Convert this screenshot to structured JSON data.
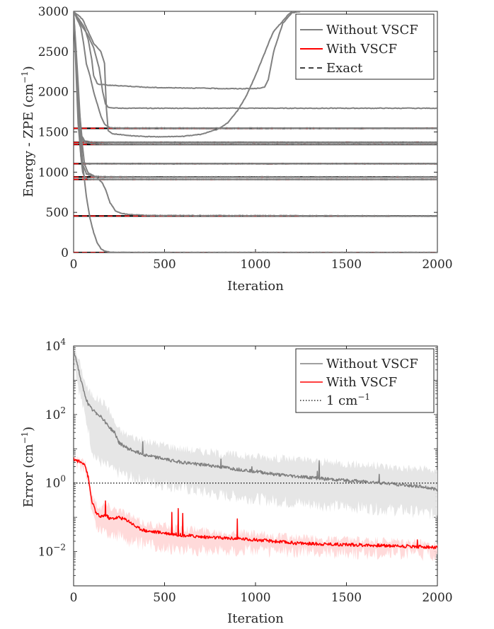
{
  "chart_data": [
    {
      "type": "line",
      "panel": "top",
      "xlabel": "Iteration",
      "ylabel": "Energy - ZPE (cm",
      "ylabel_sup": "−1",
      "ylabel_close": ")",
      "xlim": [
        0,
        2000
      ],
      "ylim": [
        0,
        3000
      ],
      "xticks": [
        0,
        500,
        1000,
        1500,
        2000
      ],
      "yticks": [
        0,
        500,
        1000,
        1500,
        2000,
        2500,
        3000
      ],
      "legend": {
        "position": "top-right",
        "entries": [
          {
            "label": "Without VSCF",
            "color": "#808080",
            "style": "solid"
          },
          {
            "label": "With VSCF",
            "color": "#ff0000",
            "style": "solid"
          },
          {
            "label": "Exact",
            "color": "#000000",
            "style": "dashed"
          }
        ]
      },
      "exact_levels": [
        0,
        455,
        910,
        940,
        1105,
        1345,
        1370,
        1545
      ],
      "series": [
        {
          "name": "Without VSCF state 1",
          "x": [
            0,
            15,
            30,
            50,
            70,
            90,
            110,
            130,
            150,
            175,
            200,
            250,
            300,
            2000
          ],
          "y": [
            3000,
            2400,
            1700,
            1100,
            700,
            430,
            250,
            120,
            50,
            15,
            5,
            2,
            0,
            0
          ]
        },
        {
          "name": "Without VSCF state 2",
          "x": [
            0,
            20,
            40,
            60,
            80,
            100,
            130,
            160,
            180,
            200,
            230,
            260,
            300,
            400,
            2000
          ],
          "y": [
            3000,
            2300,
            1500,
            1100,
            990,
            970,
            930,
            860,
            760,
            620,
            520,
            490,
            475,
            462,
            455
          ]
        },
        {
          "name": "Without VSCF state 3",
          "x": [
            0,
            30,
            50,
            70,
            100,
            150,
            200,
            300,
            400,
            2000
          ],
          "y": [
            3000,
            1600,
            1100,
            980,
            950,
            945,
            942,
            941,
            940,
            940
          ]
        },
        {
          "name": "Without VSCF state 4",
          "x": [
            0,
            25,
            40,
            50,
            60,
            80,
            120,
            200,
            2000
          ],
          "y": [
            3000,
            1800,
            1200,
            1000,
            940,
            915,
            912,
            911,
            910
          ]
        },
        {
          "name": "Without VSCF state 5",
          "x": [
            0,
            25,
            40,
            50,
            60,
            80,
            100,
            200,
            2000
          ],
          "y": [
            3000,
            1600,
            1200,
            1120,
            1110,
            1106,
            1105,
            1105,
            1105
          ]
        },
        {
          "name": "Without VSCF state 6",
          "x": [
            0,
            30,
            45,
            60,
            80,
            120,
            200,
            2000
          ],
          "y": [
            3000,
            1700,
            1420,
            1370,
            1360,
            1350,
            1346,
            1345
          ]
        },
        {
          "name": "Without VSCF state 7",
          "x": [
            0,
            30,
            45,
            60,
            80,
            120,
            200,
            2000
          ],
          "y": [
            3000,
            1800,
            1450,
            1390,
            1380,
            1372,
            1370,
            1370
          ]
        },
        {
          "name": "Without VSCF state 8",
          "x": [
            0,
            40,
            55,
            70,
            90,
            110,
            130,
            150,
            170,
            200,
            2000
          ],
          "y": [
            3000,
            2800,
            2600,
            2350,
            2200,
            2000,
            1850,
            1700,
            1600,
            1550,
            1545
          ]
        },
        {
          "name": "Without VSCF state 9",
          "x": [
            0,
            50,
            80,
            110,
            140,
            160,
            175,
            190,
            210,
            250,
            2000
          ],
          "y": [
            3000,
            2800,
            2700,
            2550,
            2300,
            2000,
            1850,
            1810,
            1800,
            1795,
            1795
          ]
        },
        {
          "name": "Without VSCF state 10",
          "x": [
            0,
            50,
            80,
            110,
            150,
            170,
            180,
            190,
            210,
            300,
            400,
            500,
            600,
            700,
            800,
            850,
            900,
            950,
            1000,
            1050,
            1080,
            1100,
            1150,
            1180,
            1200,
            1215
          ],
          "y": [
            3000,
            2900,
            2750,
            2600,
            2500,
            2350,
            1800,
            1520,
            1480,
            1455,
            1442,
            1440,
            1445,
            1470,
            1540,
            1620,
            1760,
            1950,
            2200,
            2480,
            2650,
            2750,
            2880,
            2960,
            2990,
            3000
          ]
        },
        {
          "name": "Without VSCF state 11",
          "x": [
            0,
            30,
            60,
            80,
            100,
            110,
            130,
            150,
            200,
            300,
            400,
            500,
            600,
            700,
            800,
            900,
            1000,
            1050,
            1070,
            1100,
            1150,
            1200,
            1250
          ],
          "y": [
            3000,
            2900,
            2800,
            2650,
            2400,
            2200,
            2100,
            2090,
            2080,
            2070,
            2055,
            2050,
            2048,
            2045,
            2040,
            2038,
            2040,
            2055,
            2150,
            2500,
            2850,
            2980,
            3000
          ]
        },
        {
          "name": "With VSCF levels",
          "values": [
            0,
            455,
            910,
            940,
            1105,
            1345,
            1370,
            1545
          ]
        }
      ]
    },
    {
      "type": "line",
      "panel": "bottom",
      "yscale": "log",
      "xlabel": "Iteration",
      "ylabel": "Error (cm",
      "ylabel_sup": "−1",
      "ylabel_close": ")",
      "xlim": [
        0,
        2000
      ],
      "ylim": [
        0.001,
        10000
      ],
      "xticks": [
        0,
        500,
        1000,
        1500,
        2000
      ],
      "yticks": [
        {
          "value": 0.01,
          "base": "10",
          "exp": "−2"
        },
        {
          "value": 1,
          "base": "10",
          "exp": "0"
        },
        {
          "value": 100,
          "base": "10",
          "exp": "2"
        },
        {
          "value": 10000,
          "base": "10",
          "exp": "4"
        }
      ],
      "legend": {
        "position": "top-right",
        "entries": [
          {
            "label": "Without VSCF",
            "color": "#808080",
            "style": "solid"
          },
          {
            "label": "With VSCF",
            "color": "#ff0000",
            "style": "solid"
          },
          {
            "label": "1 cm",
            "label_sup": "−1",
            "color": "#000000",
            "style": "dotted"
          }
        ]
      },
      "reference_line": 1,
      "series": [
        {
          "name": "Without VSCF",
          "color": "#808080",
          "x": [
            0,
            20,
            40,
            60,
            80,
            100,
            125,
            150,
            175,
            200,
            225,
            250,
            300,
            350,
            400,
            500,
            600,
            700,
            800,
            900,
            1000,
            1100,
            1200,
            1300,
            1400,
            1500,
            1600,
            1700,
            1800,
            1900,
            2000
          ],
          "y": [
            8000,
            3000,
            1000,
            400,
            200,
            140,
            110,
            90,
            60,
            40,
            30,
            15,
            10,
            8,
            6.5,
            5,
            4,
            3.5,
            3,
            2.5,
            2.2,
            1.8,
            1.6,
            1.45,
            1.3,
            1.2,
            1.1,
            1.0,
            0.9,
            0.8,
            0.65
          ],
          "band_upper": [
            9000,
            5000,
            2500,
            1000,
            500,
            400,
            300,
            250,
            200,
            120,
            60,
            35,
            25,
            20,
            16,
            13,
            10,
            8.5,
            7.5,
            6.5,
            6,
            5.5,
            5,
            4.5,
            4,
            3.7,
            3.4,
            3.1,
            2.8,
            2.6,
            2.3
          ],
          "band_lower": [
            6000,
            1000,
            300,
            100,
            40,
            10,
            5,
            4,
            3,
            3,
            2,
            2,
            1.5,
            1.3,
            1.1,
            0.9,
            0.7,
            0.55,
            0.45,
            0.4,
            0.35,
            0.3,
            0.27,
            0.24,
            0.22,
            0.2,
            0.19,
            0.17,
            0.16,
            0.14,
            0.12
          ],
          "spikes": [
            {
              "x": 380,
              "y": 16
            },
            {
              "x": 810,
              "y": 5
            },
            {
              "x": 980,
              "y": 3
            },
            {
              "x": 1340,
              "y": 2.2
            },
            {
              "x": 1350,
              "y": 4.5
            },
            {
              "x": 1680,
              "y": 1.8
            }
          ]
        },
        {
          "name": "With VSCF",
          "color": "#ff0000",
          "x": [
            0,
            20,
            40,
            60,
            80,
            100,
            125,
            150,
            175,
            200,
            250,
            300,
            350,
            400,
            500,
            600,
            700,
            800,
            900,
            1000,
            1100,
            1200,
            1300,
            1400,
            1500,
            1600,
            1700,
            1800,
            1900,
            2000
          ],
          "y": [
            5,
            4.5,
            4,
            3.8,
            1.5,
            0.3,
            0.13,
            0.1,
            0.12,
            0.09,
            0.1,
            0.08,
            0.05,
            0.04,
            0.035,
            0.03,
            0.027,
            0.025,
            0.024,
            0.022,
            0.02,
            0.018,
            0.017,
            0.0165,
            0.016,
            0.0155,
            0.015,
            0.0145,
            0.014,
            0.013
          ],
          "band_upper": [
            6,
            5.5,
            5,
            4.5,
            2,
            0.5,
            0.25,
            0.2,
            0.25,
            0.2,
            0.17,
            0.12,
            0.08,
            0.065,
            0.055,
            0.048,
            0.042,
            0.038,
            0.036,
            0.032,
            0.029,
            0.026,
            0.024,
            0.023,
            0.022,
            0.021,
            0.02,
            0.019,
            0.018,
            0.017
          ],
          "band_lower": [
            4,
            3.5,
            3,
            3,
            1,
            0.15,
            0.05,
            0.04,
            0.04,
            0.03,
            0.03,
            0.02,
            0.018,
            0.016,
            0.013,
            0.012,
            0.011,
            0.011,
            0.011,
            0.011,
            0.01,
            0.01,
            0.0095,
            0.0095,
            0.009,
            0.009,
            0.009,
            0.0088,
            0.0085,
            0.008
          ],
          "spikes": [
            {
              "x": 175,
              "y": 0.3
            },
            {
              "x": 540,
              "y": 0.14
            },
            {
              "x": 575,
              "y": 0.18
            },
            {
              "x": 600,
              "y": 0.13
            },
            {
              "x": 900,
              "y": 0.09
            },
            {
              "x": 1890,
              "y": 0.022
            }
          ]
        }
      ]
    }
  ]
}
